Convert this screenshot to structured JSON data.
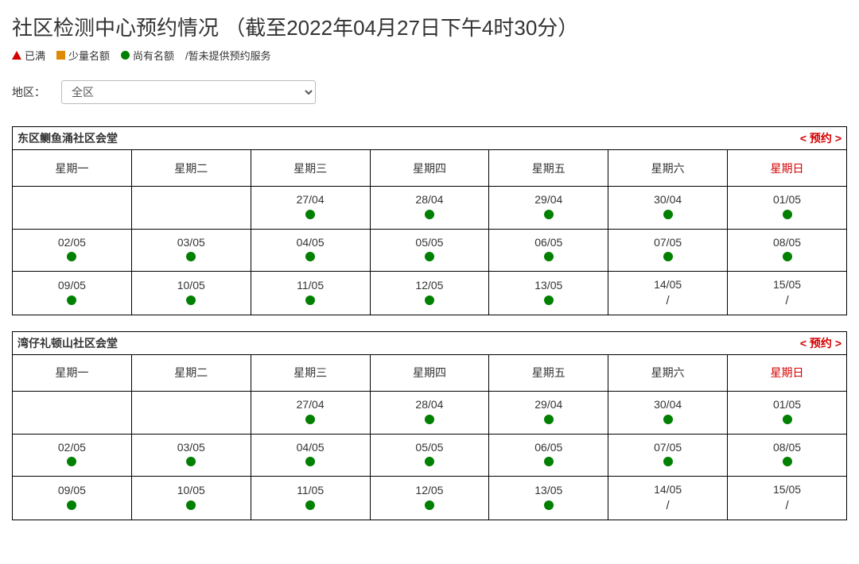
{
  "page": {
    "title": "社区检测中心预约情况 （截至2022年04月27日下午4时30分）"
  },
  "legend": {
    "full": "已满",
    "limited": "少量名额",
    "available": "尚有名额",
    "noservice": "/暂未提供预约服务"
  },
  "filter": {
    "label": "地区：",
    "selected": "全区"
  },
  "colors": {
    "full": "#d40000",
    "limited": "#e08a00",
    "available": "#008000",
    "text": "#333333",
    "sunday": "#d40000",
    "border": "#000000"
  },
  "weekdays": [
    "星期一",
    "星期二",
    "星期三",
    "星期四",
    "星期五",
    "星期六",
    "星期日"
  ],
  "reserve_link_label": "< 预约 >",
  "centers": [
    {
      "name": "东区鲗鱼涌社区会堂",
      "rows": [
        [
          {
            "date": "",
            "status": ""
          },
          {
            "date": "",
            "status": ""
          },
          {
            "date": "27/04",
            "status": "available"
          },
          {
            "date": "28/04",
            "status": "available"
          },
          {
            "date": "29/04",
            "status": "available"
          },
          {
            "date": "30/04",
            "status": "available"
          },
          {
            "date": "01/05",
            "status": "available"
          }
        ],
        [
          {
            "date": "02/05",
            "status": "available"
          },
          {
            "date": "03/05",
            "status": "available"
          },
          {
            "date": "04/05",
            "status": "available"
          },
          {
            "date": "05/05",
            "status": "available"
          },
          {
            "date": "06/05",
            "status": "available"
          },
          {
            "date": "07/05",
            "status": "available"
          },
          {
            "date": "08/05",
            "status": "available"
          }
        ],
        [
          {
            "date": "09/05",
            "status": "available"
          },
          {
            "date": "10/05",
            "status": "available"
          },
          {
            "date": "11/05",
            "status": "available"
          },
          {
            "date": "12/05",
            "status": "available"
          },
          {
            "date": "13/05",
            "status": "available"
          },
          {
            "date": "14/05",
            "status": "noservice"
          },
          {
            "date": "15/05",
            "status": "noservice"
          }
        ]
      ]
    },
    {
      "name": "湾仔礼顿山社区会堂",
      "rows": [
        [
          {
            "date": "",
            "status": ""
          },
          {
            "date": "",
            "status": ""
          },
          {
            "date": "27/04",
            "status": "available"
          },
          {
            "date": "28/04",
            "status": "available"
          },
          {
            "date": "29/04",
            "status": "available"
          },
          {
            "date": "30/04",
            "status": "available"
          },
          {
            "date": "01/05",
            "status": "available"
          }
        ],
        [
          {
            "date": "02/05",
            "status": "available"
          },
          {
            "date": "03/05",
            "status": "available"
          },
          {
            "date": "04/05",
            "status": "available"
          },
          {
            "date": "05/05",
            "status": "available"
          },
          {
            "date": "06/05",
            "status": "available"
          },
          {
            "date": "07/05",
            "status": "available"
          },
          {
            "date": "08/05",
            "status": "available"
          }
        ],
        [
          {
            "date": "09/05",
            "status": "available"
          },
          {
            "date": "10/05",
            "status": "available"
          },
          {
            "date": "11/05",
            "status": "available"
          },
          {
            "date": "12/05",
            "status": "available"
          },
          {
            "date": "13/05",
            "status": "available"
          },
          {
            "date": "14/05",
            "status": "noservice"
          },
          {
            "date": "15/05",
            "status": "noservice"
          }
        ]
      ]
    }
  ]
}
